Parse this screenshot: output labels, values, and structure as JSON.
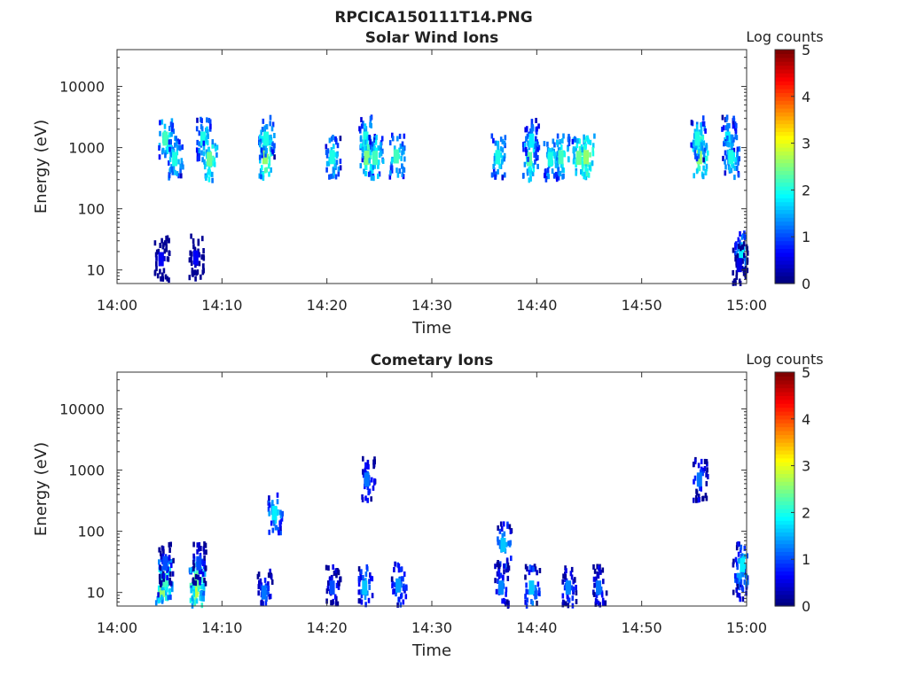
{
  "figure": {
    "title": "RPCICA150111T14.PNG"
  },
  "chart_data": [
    {
      "type": "heatmap",
      "title": "Solar Wind Ions",
      "xlabel": "Time",
      "ylabel": "Energy (eV)",
      "x_ticks": [
        "14:00",
        "14:10",
        "14:20",
        "14:30",
        "14:40",
        "14:50",
        "15:00"
      ],
      "x_range_min": [
        0,
        60
      ],
      "y_ticks": [
        "10",
        "100",
        "1000",
        "10000"
      ],
      "y_scale": "log",
      "ylim": [
        6,
        40000
      ],
      "colorbar": {
        "label": "Log counts",
        "range": [
          0,
          5
        ],
        "ticks": [
          "0",
          "1",
          "2",
          "3",
          "4",
          "5"
        ],
        "colormap": "jet"
      },
      "grid": false,
      "blobs": [
        {
          "t": 4.6,
          "e": 1400,
          "v": 2.2
        },
        {
          "t": 5.5,
          "e": 650,
          "v": 2.0
        },
        {
          "t": 4.2,
          "e": 15,
          "v": 0.6
        },
        {
          "t": 7.5,
          "e": 16,
          "v": 0.6
        },
        {
          "t": 8.2,
          "e": 1400,
          "v": 2.0
        },
        {
          "t": 8.8,
          "e": 650,
          "v": 2.4
        },
        {
          "t": 14.1,
          "e": 700,
          "v": 2.6
        },
        {
          "t": 14.2,
          "e": 1400,
          "v": 2.0
        },
        {
          "t": 20.5,
          "e": 700,
          "v": 2.0
        },
        {
          "t": 23.7,
          "e": 1400,
          "v": 2.0
        },
        {
          "t": 23.8,
          "e": 680,
          "v": 2.5
        },
        {
          "t": 24.6,
          "e": 680,
          "v": 2.2
        },
        {
          "t": 26.6,
          "e": 720,
          "v": 2.2
        },
        {
          "t": 36.3,
          "e": 700,
          "v": 2.0
        },
        {
          "t": 39.3,
          "e": 650,
          "v": 2.3
        },
        {
          "t": 39.5,
          "e": 1300,
          "v": 1.8
        },
        {
          "t": 41.3,
          "e": 650,
          "v": 2.0
        },
        {
          "t": 42.3,
          "e": 700,
          "v": 2.2
        },
        {
          "t": 44.0,
          "e": 680,
          "v": 2.4
        },
        {
          "t": 44.7,
          "e": 700,
          "v": 2.6
        },
        {
          "t": 55.5,
          "e": 700,
          "v": 2.6
        },
        {
          "t": 55.3,
          "e": 1400,
          "v": 2.0
        },
        {
          "t": 58.2,
          "e": 1400,
          "v": 1.8
        },
        {
          "t": 58.5,
          "e": 700,
          "v": 2.0
        },
        {
          "t": 59.5,
          "e": 20,
          "v": 1.8
        },
        {
          "t": 59.3,
          "e": 12,
          "v": 0.5
        }
      ]
    },
    {
      "type": "heatmap",
      "title": "Cometary Ions",
      "xlabel": "Time",
      "ylabel": "Energy (eV)",
      "x_ticks": [
        "14:00",
        "14:10",
        "14:20",
        "14:30",
        "14:40",
        "14:50",
        "15:00"
      ],
      "x_range_min": [
        0,
        60
      ],
      "y_ticks": [
        "10",
        "100",
        "1000",
        "10000"
      ],
      "y_scale": "log",
      "ylim": [
        6,
        40000
      ],
      "colorbar": {
        "label": "Log counts",
        "range": [
          0,
          5
        ],
        "ticks": [
          "0",
          "1",
          "2",
          "3",
          "4",
          "5"
        ],
        "colormap": "jet"
      },
      "grid": false,
      "blobs": [
        {
          "t": 4.3,
          "e": 11,
          "v": 2.6
        },
        {
          "t": 4.5,
          "e": 16,
          "v": 2.2
        },
        {
          "t": 4.6,
          "e": 30,
          "v": 1.0
        },
        {
          "t": 7.5,
          "e": 11,
          "v": 2.8
        },
        {
          "t": 7.6,
          "e": 16,
          "v": 2.4
        },
        {
          "t": 7.8,
          "e": 30,
          "v": 1.0
        },
        {
          "t": 14.0,
          "e": 10,
          "v": 1.2
        },
        {
          "t": 15.0,
          "e": 200,
          "v": 1.8
        },
        {
          "t": 20.5,
          "e": 12,
          "v": 1.0
        },
        {
          "t": 23.6,
          "e": 12,
          "v": 1.6
        },
        {
          "t": 23.8,
          "e": 700,
          "v": 1.2
        },
        {
          "t": 26.8,
          "e": 13,
          "v": 1.4
        },
        {
          "t": 36.6,
          "e": 12,
          "v": 1.3
        },
        {
          "t": 36.8,
          "e": 60,
          "v": 1.6
        },
        {
          "t": 39.5,
          "e": 12,
          "v": 1.6
        },
        {
          "t": 43.0,
          "e": 12,
          "v": 1.3
        },
        {
          "t": 45.9,
          "e": 12,
          "v": 1.2
        },
        {
          "t": 55.5,
          "e": 700,
          "v": 1.2
        },
        {
          "t": 59.3,
          "e": 16,
          "v": 1.4
        },
        {
          "t": 59.6,
          "e": 28,
          "v": 1.8
        }
      ]
    }
  ]
}
